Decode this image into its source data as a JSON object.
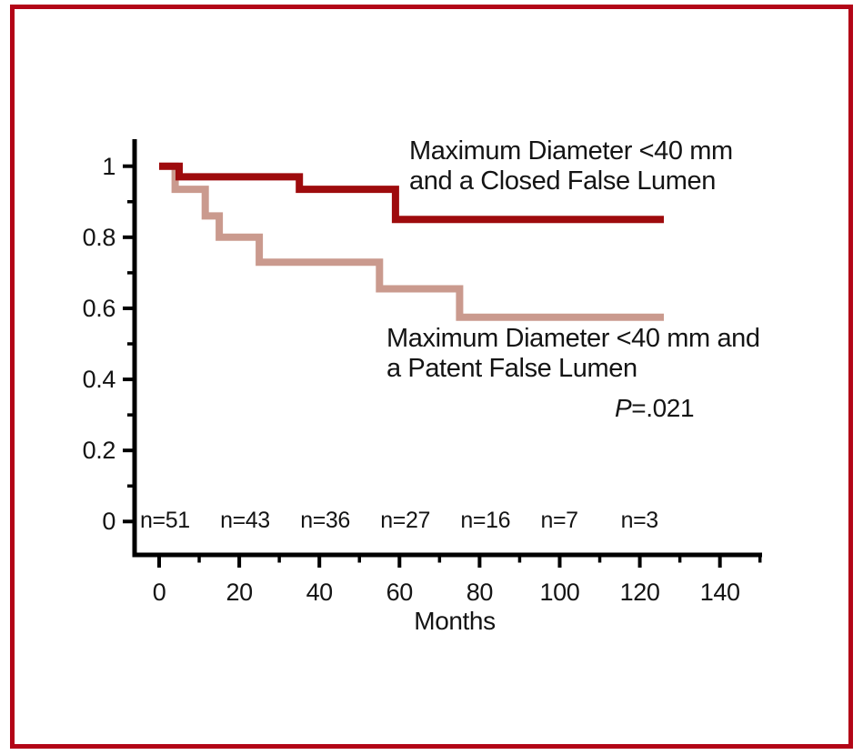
{
  "figure": {
    "frame_color": "#b30517",
    "background": "#ffffff",
    "axis_color": "#000000",
    "text_color": "#141414"
  },
  "chart_data": {
    "type": "line",
    "subtype": "kaplan-meier-step-survival",
    "title": "",
    "xlabel": "Months",
    "ylabel": "",
    "xlim": [
      0,
      150
    ],
    "ylim": [
      0,
      1.08
    ],
    "grid": false,
    "legend_position": "annotated-on-plot",
    "x_ticks_major": [
      0,
      20,
      40,
      60,
      80,
      100,
      120,
      140
    ],
    "x_tick_labels": [
      "0",
      "20",
      "40",
      "60",
      "80",
      "100",
      "120",
      "140"
    ],
    "x_ticks_minor": [
      10,
      30,
      50,
      70,
      90,
      110,
      130,
      150
    ],
    "y_ticks_major": [
      1,
      0.8,
      0.6,
      0.4,
      0.2,
      0
    ],
    "y_tick_labels": [
      "1",
      "0.8",
      "0.6",
      "0.4",
      "0.2",
      "0"
    ],
    "y_ticks_minor": [
      0.9,
      0.7,
      0.5,
      0.3,
      0.1
    ],
    "series": [
      {
        "name": "Maximum Diameter <40 mm and a Closed False Lumen",
        "color": "#9e0b0d",
        "line_width": 8,
        "points": [
          [
            0,
            1
          ],
          [
            5,
            1
          ],
          [
            5,
            0.97
          ],
          [
            35,
            0.97
          ],
          [
            35,
            0.935
          ],
          [
            59,
            0.935
          ],
          [
            59,
            0.85
          ],
          [
            126,
            0.85
          ]
        ]
      },
      {
        "name": "Maximum Diameter <40 mm and a Patent False Lumen",
        "color": "#ca9a8e",
        "line_width": 8,
        "points": [
          [
            0,
            1
          ],
          [
            4,
            1
          ],
          [
            4,
            0.935
          ],
          [
            11.5,
            0.935
          ],
          [
            11.5,
            0.86
          ],
          [
            15,
            0.86
          ],
          [
            15,
            0.8
          ],
          [
            25,
            0.8
          ],
          [
            25,
            0.73
          ],
          [
            55,
            0.73
          ],
          [
            55,
            0.655
          ],
          [
            75,
            0.655
          ],
          [
            75,
            0.575
          ],
          [
            126,
            0.575
          ]
        ]
      }
    ],
    "annotations": {
      "legend_closed": {
        "line1": "Maximum Diameter <40 mm",
        "line2": "and a Closed False Lumen"
      },
      "legend_patent": {
        "line1": "Maximum Diameter <40 mm and",
        "line2": "a Patent False Lumen"
      },
      "p_value": {
        "italic": "P",
        "rest": "=.021"
      }
    },
    "at_risk": {
      "times": [
        0,
        20,
        40,
        60,
        80,
        100,
        120
      ],
      "labels": [
        "n=51",
        "n=43",
        "n=36",
        "n=27",
        "n=16",
        "n=7",
        "n=3"
      ]
    }
  }
}
